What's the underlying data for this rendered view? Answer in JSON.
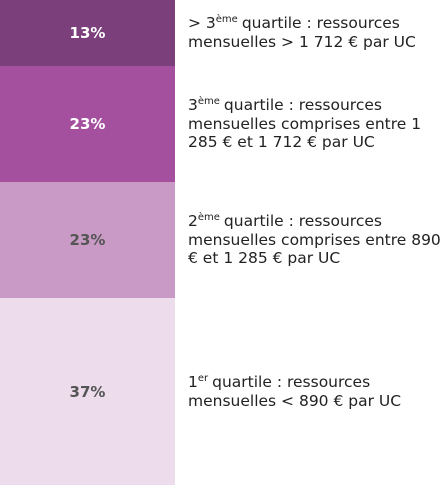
{
  "chart_data": {
    "type": "stacked-bar",
    "categories": [
      {
        "prefix": "> 3",
        "sup": "ème",
        "text": "quartile : ressources mensuelles > 1 712 € par UC"
      },
      {
        "prefix": "3",
        "sup": "ème",
        "text": "quartile : ressources mensuelles comprises entre 1 285 € et 1 712 € par UC"
      },
      {
        "prefix": "2",
        "sup": "ème",
        "text": "quartile : ressources mensuelles comprises entre 890 € et 1 285 € par UC"
      },
      {
        "prefix": "1",
        "sup": "er",
        "text": "quartile : ressources mensuelles < 890 € par UC"
      }
    ],
    "values": [
      13,
      23,
      23,
      37
    ],
    "value_labels": [
      "13%",
      "23%",
      "23%",
      "37%"
    ],
    "colors": [
      "#7b3f7b",
      "#a5509f",
      "#c99ac6",
      "#eddcec"
    ],
    "label_colors": [
      "#ffffff",
      "#ffffff",
      "#555555",
      "#555555"
    ]
  }
}
